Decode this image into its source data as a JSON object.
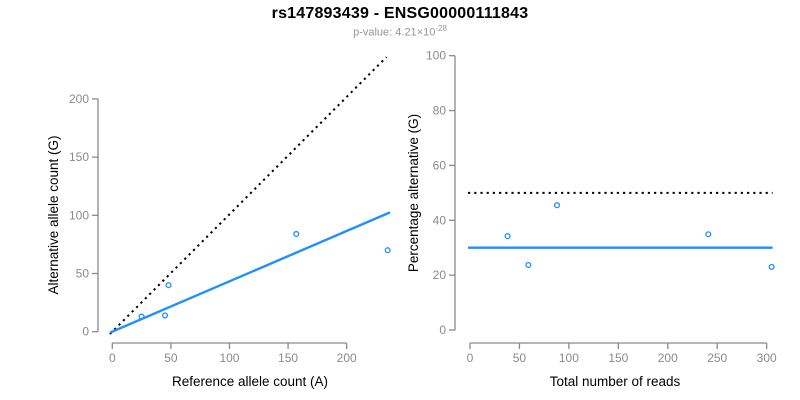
{
  "figure": {
    "title": "rs147893439 - ENSG00000111843",
    "subtitle_prefix": "p-value: 4.21×10",
    "subtitle_exponent": "-28"
  },
  "colors": {
    "accent_blue": "#1e90ff",
    "line_black": "#000000",
    "axis_gray": "#8a8a8a",
    "tick_label_gray": "#8a8a8a",
    "axis_title_black": "#000000",
    "subtitle_gray": "#969696"
  },
  "chart_data": [
    {
      "type": "scatter",
      "panel": "left",
      "title": "",
      "xlabel": "Reference allele count (A)",
      "ylabel": "Alternative allele count (G)",
      "x_ticks": [
        0,
        50,
        100,
        150,
        200
      ],
      "y_ticks": [
        0,
        50,
        100,
        150,
        200
      ],
      "xlim": [
        -9,
        246
      ],
      "ylim": [
        -9,
        246
      ],
      "grid": false,
      "points": [
        [
          25,
          13
        ],
        [
          45,
          14
        ],
        [
          48,
          40
        ],
        [
          157,
          84
        ],
        [
          235,
          70
        ]
      ],
      "lines": [
        {
          "name": "identity-line",
          "style": "dotted",
          "color": "#000000",
          "x1": -2,
          "y1": -2,
          "x2": 234,
          "y2": 236
        },
        {
          "name": "regression-line",
          "style": "solid",
          "color": "#1e90ff",
          "x1": -2,
          "y1": -0.8,
          "x2": 237,
          "y2": 102.5
        }
      ]
    },
    {
      "type": "scatter",
      "panel": "right",
      "title": "",
      "xlabel": "Total number of reads",
      "ylabel": "Percentage alternative (G)",
      "x_ticks": [
        0,
        50,
        100,
        150,
        200,
        250,
        300
      ],
      "y_ticks": [
        0,
        20,
        40,
        60,
        80,
        100
      ],
      "xlim": [
        -12,
        317
      ],
      "ylim": [
        -4,
        104
      ],
      "grid": false,
      "points": [
        [
          38,
          34.2
        ],
        [
          59,
          23.7
        ],
        [
          88,
          45.5
        ],
        [
          241,
          34.9
        ],
        [
          305,
          23.0
        ]
      ],
      "lines": [
        {
          "name": "fifty-percent-line",
          "style": "dotted",
          "color": "#000000",
          "x1": -2,
          "y1": 50,
          "x2": 306,
          "y2": 50
        },
        {
          "name": "mean-percentage-line",
          "style": "solid",
          "color": "#1e90ff",
          "x1": -2,
          "y1": 30,
          "x2": 306,
          "y2": 30
        }
      ]
    }
  ]
}
